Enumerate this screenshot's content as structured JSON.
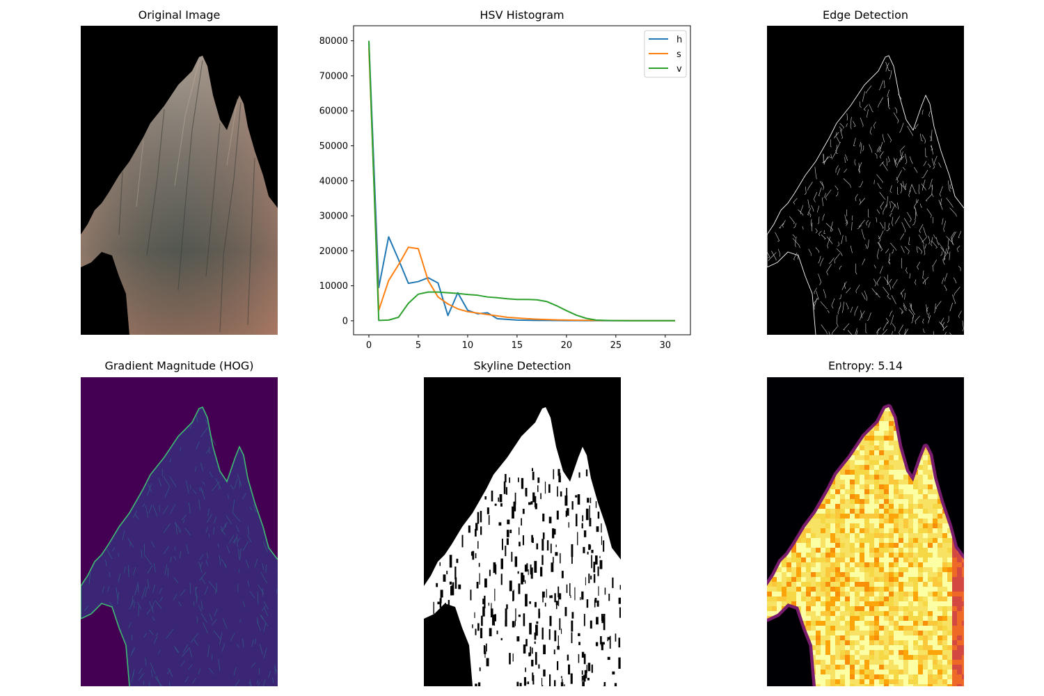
{
  "panels": {
    "original": {
      "title": "Original Image"
    },
    "histogram": {
      "title": "HSV Histogram"
    },
    "edges": {
      "title": "Edge Detection"
    },
    "gradient": {
      "title": "Gradient Magnitude (HOG)"
    },
    "skyline": {
      "title": "Skyline Detection"
    },
    "entropy": {
      "title": "Entropy: 5.14"
    }
  },
  "chart_data": {
    "type": "line",
    "title": "HSV Histogram",
    "xlabel": "",
    "ylabel": "",
    "x": [
      0,
      1,
      2,
      3,
      4,
      5,
      6,
      7,
      8,
      9,
      10,
      11,
      12,
      13,
      14,
      15,
      16,
      17,
      18,
      19,
      20,
      21,
      22,
      23,
      24,
      25,
      26,
      27,
      28,
      29,
      30,
      31
    ],
    "xlim": [
      -1.55,
      32.55
    ],
    "ylim": [
      -4000,
      84300
    ],
    "xticks": [
      0,
      5,
      10,
      15,
      20,
      25,
      30
    ],
    "yticks": [
      0,
      10000,
      20000,
      30000,
      40000,
      50000,
      60000,
      70000,
      80000
    ],
    "legend_position": "top-right",
    "series": [
      {
        "name": "h",
        "color": "#1f77b4",
        "values": [
          80000,
          9500,
          24000,
          17500,
          10700,
          11200,
          12300,
          10800,
          1500,
          8000,
          3000,
          2000,
          2300,
          600,
          400,
          200,
          150,
          100,
          100,
          80,
          60,
          50,
          40,
          30,
          20,
          20,
          20,
          20,
          20,
          20,
          20,
          20
        ]
      },
      {
        "name": "s",
        "color": "#ff7f0e",
        "values": [
          78000,
          3000,
          11500,
          16000,
          21000,
          20600,
          11500,
          6800,
          4800,
          3400,
          2600,
          2200,
          1800,
          1400,
          1000,
          800,
          600,
          450,
          350,
          250,
          200,
          150,
          120,
          100,
          80,
          60,
          50,
          40,
          30,
          30,
          20,
          20
        ]
      },
      {
        "name": "v",
        "color": "#2ca02c",
        "values": [
          80000,
          100,
          200,
          1000,
          5000,
          7600,
          8200,
          8200,
          8000,
          7800,
          7500,
          7300,
          6800,
          6600,
          6300,
          6100,
          6100,
          6000,
          5500,
          4300,
          2900,
          1600,
          700,
          200,
          100,
          50,
          30,
          20,
          20,
          20,
          20,
          20
        ]
      }
    ]
  }
}
